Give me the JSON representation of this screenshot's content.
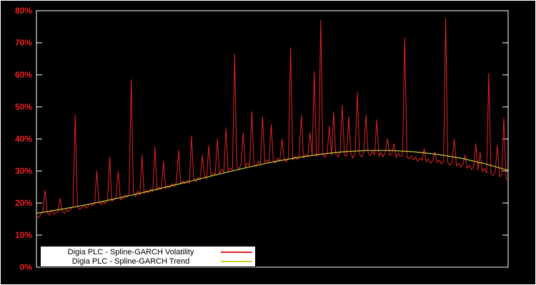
{
  "colors": {
    "background": "#000000",
    "frame": "#ffffff",
    "volatility_line": "#e62222",
    "trend_line": "#cccc33",
    "axis_label": "#ee2020",
    "legend_bg": "#ffffff",
    "legend_border": "#000000"
  },
  "legend": {
    "entries": [
      {
        "label": "Digia PLC - Spline-GARCH Volatility",
        "color": "#e62222"
      },
      {
        "label": "Digia PLC - Spline-GARCH Trend",
        "color": "#cccc33"
      }
    ]
  },
  "chart_data": {
    "type": "line",
    "title": "",
    "xlabel": "",
    "ylabel": "",
    "ylim": [
      0,
      80
    ],
    "grid": false,
    "legend_position": "bottom-left",
    "yticks": {
      "values": [
        0,
        10,
        20,
        30,
        40,
        50,
        60,
        70,
        80
      ],
      "labels": [
        "0%",
        "10%",
        "20%",
        "30%",
        "40%",
        "50%",
        "60%",
        "70%",
        "80%"
      ]
    },
    "series": [
      {
        "name": "Digia PLC - Spline-GARCH Volatility",
        "color": "#e62222",
        "values": [
          16.0,
          15.5,
          16.5,
          17.5,
          24.0,
          17.0,
          16.2,
          17.8,
          16.5,
          17.0,
          17.2,
          21.5,
          17.5,
          16.8,
          18.0,
          17.4,
          18.2,
          18.8,
          47.5,
          19.0,
          18.0,
          18.6,
          19.5,
          18.4,
          19.0,
          20.0,
          19.2,
          19.8,
          30.0,
          20.2,
          19.5,
          20.5,
          19.8,
          21.0,
          34.5,
          20.5,
          21.2,
          22.0,
          30.0,
          21.0,
          21.5,
          22.5,
          21.8,
          23.0,
          58.5,
          23.5,
          22.0,
          23.8,
          22.5,
          35.0,
          23.0,
          24.0,
          23.2,
          24.5,
          23.6,
          37.5,
          24.0,
          25.0,
          24.2,
          33.0,
          24.5,
          25.5,
          24.8,
          26.0,
          25.2,
          26.5,
          36.5,
          25.8,
          26.8,
          26.0,
          27.0,
          26.2,
          41.0,
          27.5,
          26.6,
          28.0,
          27.2,
          35.0,
          28.5,
          27.6,
          38.0,
          28.4,
          29.5,
          28.8,
          40.0,
          29.2,
          30.5,
          29.6,
          43.5,
          30.0,
          31.0,
          30.2,
          66.5,
          31.5,
          30.6,
          32.0,
          42.0,
          31.2,
          32.5,
          31.6,
          48.5,
          32.0,
          31.4,
          33.0,
          32.2,
          47.0,
          32.6,
          33.5,
          32.8,
          44.5,
          33.2,
          32.4,
          34.0,
          33.0,
          40.0,
          33.6,
          32.8,
          34.2,
          68.5,
          33.4,
          34.5,
          33.6,
          35.0,
          47.5,
          34.0,
          35.2,
          34.4,
          42.0,
          34.8,
          61.0,
          34.6,
          35.4,
          77.0,
          35.0,
          34.2,
          35.6,
          44.0,
          34.8,
          48.5,
          35.2,
          34.4,
          35.8,
          50.5,
          35.0,
          34.6,
          47.0,
          35.4,
          34.0,
          35.8,
          54.5,
          35.2,
          34.4,
          36.0,
          47.5,
          35.6,
          34.8,
          36.2,
          35.0,
          46.0,
          34.6,
          35.8,
          34.4,
          36.0,
          40.0,
          34.8,
          35.4,
          38.5,
          34.2,
          35.6,
          34.6,
          35.0,
          71.5,
          34.4,
          33.8,
          34.8,
          33.4,
          34.4,
          33.0,
          34.0,
          33.4,
          37.0,
          32.8,
          33.8,
          32.4,
          33.2,
          36.0,
          32.6,
          33.4,
          32.2,
          33.0,
          77.5,
          32.6,
          31.8,
          32.8,
          40.0,
          31.6,
          32.4,
          31.2,
          32.0,
          35.0,
          30.8,
          31.8,
          30.4,
          31.4,
          38.5,
          30.2,
          36.0,
          29.8,
          30.8,
          29.4,
          60.5,
          29.2,
          28.6,
          29.6,
          38.0,
          28.2,
          28.8,
          46.5,
          27.6,
          27.0
        ]
      },
      {
        "name": "Digia PLC - Spline-GARCH Trend",
        "color": "#cccc33",
        "smooth": true,
        "values": [
          16.8,
          18.0,
          19.3,
          20.8,
          22.4,
          24.1,
          25.9,
          27.7,
          29.5,
          31.2,
          32.8,
          34.1,
          35.2,
          36.0,
          36.4,
          36.4,
          36.0,
          35.2,
          34.0,
          32.3,
          30.2
        ]
      }
    ]
  }
}
